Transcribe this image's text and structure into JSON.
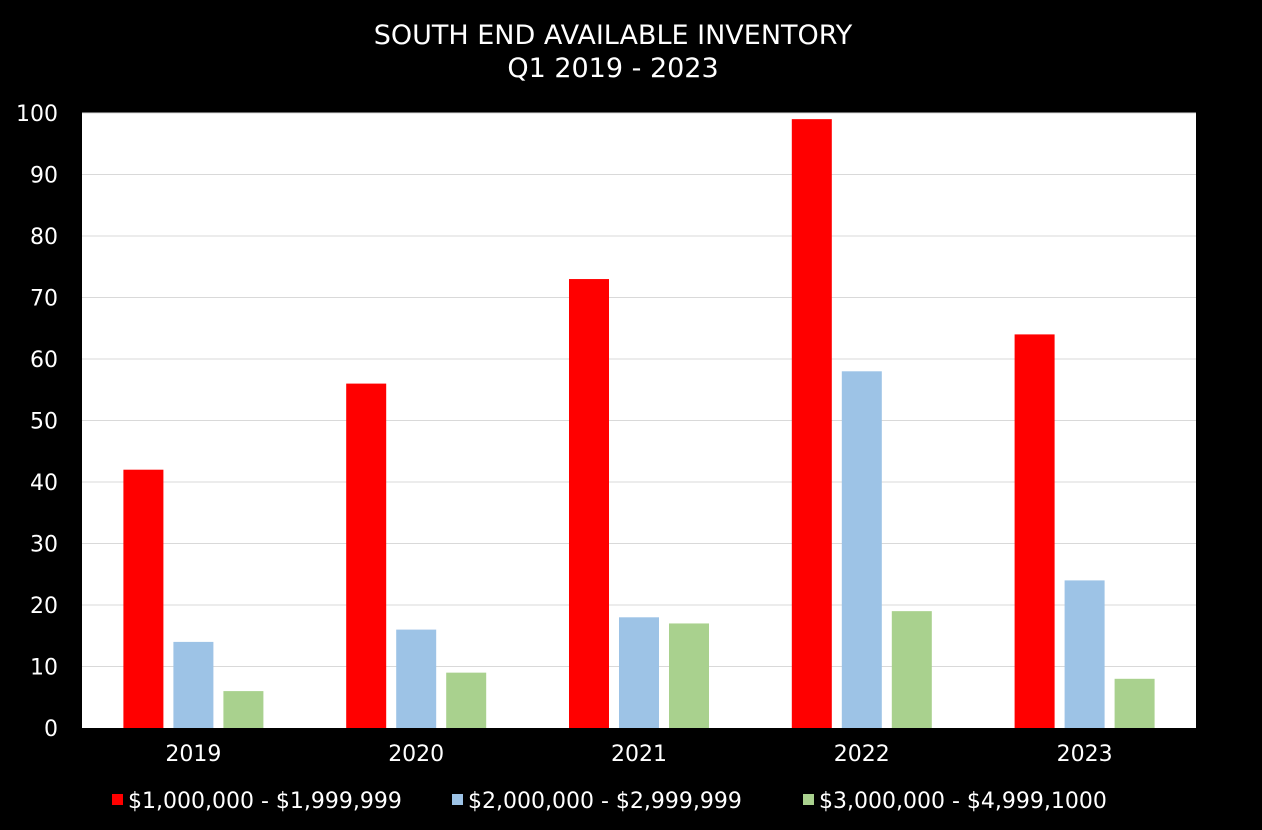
{
  "chart_data": {
    "type": "bar",
    "title": "SOUTH END AVAILABLE INVENTORY",
    "subtitle": "Q1 2019 - 2023",
    "xlabel": "",
    "ylabel": "",
    "ylim": [
      0,
      100
    ],
    "yticks": [
      "0",
      "10",
      "20",
      "30",
      "40",
      "50",
      "60",
      "70",
      "80",
      "90",
      "100"
    ],
    "categories": [
      "2019",
      "2020",
      "2021",
      "2022",
      "2023"
    ],
    "grid": true,
    "legend_position": "bottom",
    "series": [
      {
        "name": "$1,000,000 - $1,999,999",
        "color": "#ff0000",
        "values": [
          42,
          56,
          73,
          99,
          64
        ]
      },
      {
        "name": "$2,000,000 - $2,999,999",
        "color": "#9dc3e6",
        "values": [
          14,
          16,
          18,
          58,
          24
        ]
      },
      {
        "name": "$3,000,000 - $4,999,1000",
        "color": "#a9d18e",
        "values": [
          6,
          9,
          17,
          19,
          8
        ]
      }
    ]
  }
}
